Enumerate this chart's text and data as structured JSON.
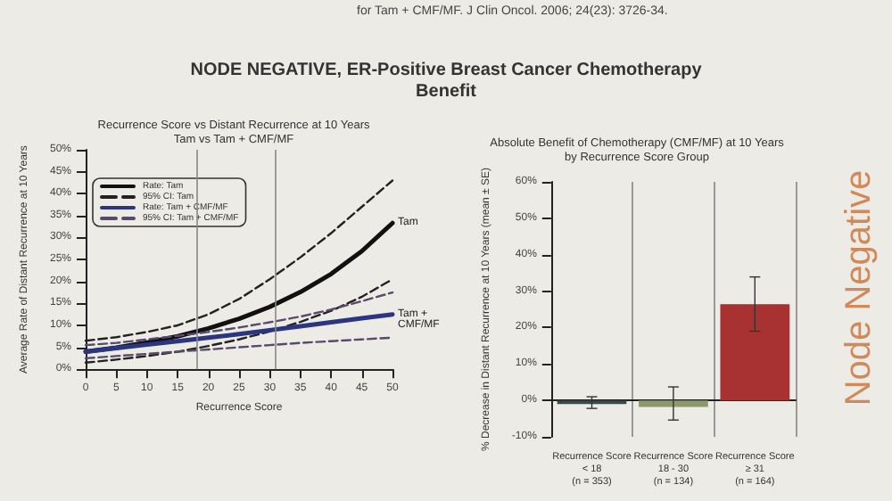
{
  "chart_data": [
    {
      "type": "line",
      "title": "Recurrence Score vs Distant Recurrence at 10 Years",
      "subtitle": "Tam vs Tam + CMF/MF",
      "xlabel": "Recurrence Score",
      "ylabel": "Average Rate of Distant Recurrence at 10 Years",
      "annotations": [
        "for Tam + CMF/MF. J Clin Oncol. 2006; 24(23): 3726-34.",
        "NODE NEGATIVE, ER-Positive Breast Cancer Chemotherapy Benefit",
        "Node Negative",
        {
          "text": "Tam",
          "x": 50,
          "y": 33.3
        },
        {
          "text": "Tam + CMF/MF",
          "x": 50,
          "y": 12.5
        }
      ],
      "x": [
        0,
        5,
        10,
        15,
        20,
        25,
        30,
        35,
        40,
        45,
        50
      ],
      "series": [
        {
          "name": "Rate: Tam",
          "color": "#111111",
          "line_style": "solid",
          "values": [
            4,
            4.9,
            6.1,
            7.5,
            9.3,
            11.5,
            14.2,
            17.6,
            21.7,
            26.9,
            33.3
          ]
        },
        {
          "name": "95% CI: Tam",
          "color": "#222222",
          "line_style": "dashed",
          "values": [
            6.5,
            7.3,
            8.5,
            10,
            12.5,
            16,
            20.5,
            25.5,
            31,
            37,
            43
          ]
        },
        {
          "color": "#222222",
          "line_style": "dashed",
          "values": [
            1.5,
            2.2,
            3,
            4,
            5.3,
            6.8,
            8.6,
            10.8,
            13.3,
            16.5,
            20.5
          ]
        },
        {
          "name": "Rate: Tam + CMF/MF",
          "color": "#2b3580",
          "line_style": "solid",
          "values": [
            4,
            4.8,
            5.6,
            6.4,
            7.2,
            8,
            8.9,
            9.8,
            10.7,
            11.6,
            12.5
          ]
        },
        {
          "name": "95% CI: Tam + CMF/MF",
          "color": "#5a4a6a",
          "line_style": "dashed",
          "values": [
            5.5,
            6,
            6.8,
            7.6,
            8.5,
            9.5,
            10.7,
            12,
            13.6,
            15.5,
            17.5
          ]
        },
        {
          "color": "#5a4a6a",
          "line_style": "dashed",
          "values": [
            2.5,
            3,
            3.5,
            4,
            4.5,
            5,
            5.5,
            6,
            6.4,
            6.8,
            7.2
          ]
        }
      ],
      "xlim": [
        0,
        50
      ],
      "xticks": [
        0,
        5,
        10,
        15,
        20,
        25,
        30,
        35,
        40,
        45,
        50
      ],
      "ylim": [
        0,
        50
      ],
      "yticks": [
        {
          "value": 0,
          "label": "0%"
        },
        {
          "value": 5,
          "label": "5%"
        },
        {
          "value": 10,
          "label": "10%"
        },
        {
          "value": 15,
          "label": "15%"
        },
        {
          "value": 20,
          "label": "20%"
        },
        {
          "value": 25,
          "label": "25%"
        },
        {
          "value": 30,
          "label": "30%"
        },
        {
          "value": 35,
          "label": "35%"
        },
        {
          "value": 40,
          "label": "40%"
        },
        {
          "value": 45,
          "label": "45%"
        },
        {
          "value": 50,
          "label": "50%"
        }
      ],
      "ref_lines": [
        {
          "axis": "x",
          "value": 18,
          "color": "#888888"
        },
        {
          "axis": "x",
          "value": 31,
          "color": "#888888"
        }
      ],
      "grid": false,
      "legend": "top left",
      "marker": "none"
    },
    {
      "type": "bar",
      "title": "Absolute Benefit of Chemotherapy (CMF/MF) at 10 Years",
      "subtitle": "by Recurrence Score Group",
      "ylabel": "% Decrease in Distant Recurrence at 10 Years (mean ± SE)",
      "categories": [
        "Recurrence Score\n< 18\n(n = 353)",
        "Recurrence Score\n18 - 30\n(n = 134)",
        "Recurrence Score\n≥ 31\n(n = 164)"
      ],
      "values": [
        -1.0,
        -1.8,
        26.4
      ],
      "colors": [
        "#3a4a4a",
        "#8a9a6a",
        "#a83232"
      ],
      "errors": [
        [
          -2.2,
          1.0
        ],
        [
          -5.4,
          3.7
        ],
        [
          19.0,
          33.9
        ]
      ],
      "ylim": [
        -10,
        60
      ],
      "yticks": [
        {
          "value": -10,
          "label": "-10%"
        },
        {
          "value": 0,
          "label": "0%"
        },
        {
          "value": 10,
          "label": "10%"
        },
        {
          "value": 20,
          "label": "20%"
        },
        {
          "value": 30,
          "label": "30%"
        },
        {
          "value": 40,
          "label": "40%"
        },
        {
          "value": 50,
          "label": "50%"
        },
        {
          "value": 60,
          "label": "60%"
        }
      ],
      "grid": "x",
      "legend": false
    }
  ]
}
